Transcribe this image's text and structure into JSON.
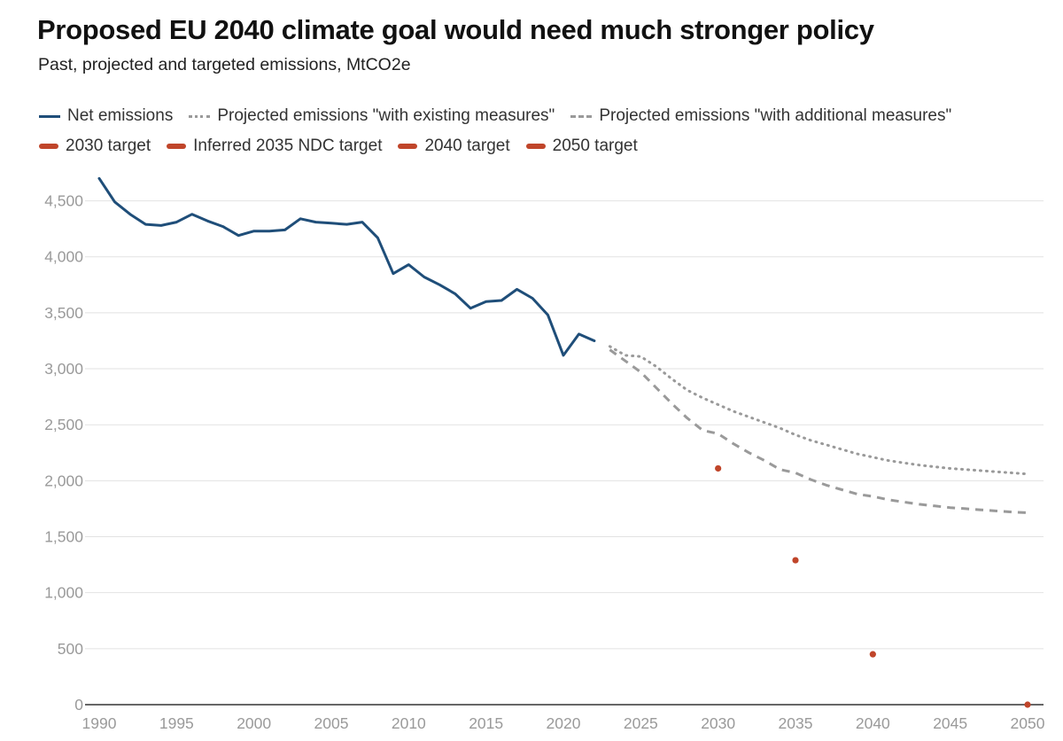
{
  "chart_data": {
    "type": "line",
    "title": "Proposed EU 2040 climate goal would need much stronger policy",
    "subtitle": "Past, projected and targeted emissions, MtCO2e",
    "xlabel": "",
    "ylabel": "",
    "xlim": [
      1990,
      2050
    ],
    "ylim": [
      0,
      4750
    ],
    "x_ticks": [
      1990,
      1995,
      2000,
      2005,
      2010,
      2015,
      2020,
      2025,
      2030,
      2035,
      2040,
      2045,
      2050
    ],
    "y_ticks": [
      0,
      500,
      1000,
      1500,
      2000,
      2500,
      3000,
      3500,
      4000,
      4500
    ],
    "y_tick_labels": [
      "0",
      "500",
      "1,000",
      "1,500",
      "2,000",
      "2,500",
      "3,000",
      "3,500",
      "4,000",
      "4,500"
    ],
    "grid": true,
    "legend_position": "top",
    "series": [
      {
        "name": "Net emissions",
        "style": "solid",
        "color": "#1f4e79",
        "x": [
          1990,
          1991,
          1992,
          1993,
          1994,
          1995,
          1996,
          1997,
          1998,
          1999,
          2000,
          2001,
          2002,
          2003,
          2004,
          2005,
          2006,
          2007,
          2008,
          2009,
          2010,
          2011,
          2012,
          2013,
          2014,
          2015,
          2016,
          2017,
          2018,
          2019,
          2020,
          2021,
          2022
        ],
        "values": [
          4700,
          4490,
          4380,
          4290,
          4280,
          4310,
          4380,
          4320,
          4270,
          4190,
          4230,
          4230,
          4240,
          4340,
          4310,
          4300,
          4290,
          4310,
          4170,
          3850,
          3930,
          3820,
          3750,
          3670,
          3540,
          3600,
          3610,
          3710,
          3630,
          3480,
          3120,
          3310,
          3250
        ]
      },
      {
        "name": "Projected emissions \"with existing measures\"",
        "style": "dotted",
        "color": "#9a9a9a",
        "x": [
          2023,
          2024,
          2025,
          2026,
          2027,
          2028,
          2029,
          2030,
          2031,
          2032,
          2033,
          2034,
          2035,
          2036,
          2037,
          2038,
          2039,
          2040,
          2041,
          2042,
          2043,
          2044,
          2045,
          2046,
          2047,
          2048,
          2049,
          2050
        ],
        "values": [
          3200,
          3120,
          3110,
          3020,
          2910,
          2810,
          2740,
          2680,
          2620,
          2570,
          2520,
          2470,
          2410,
          2360,
          2320,
          2280,
          2240,
          2210,
          2180,
          2160,
          2140,
          2125,
          2110,
          2100,
          2090,
          2080,
          2070,
          2060
        ]
      },
      {
        "name": "Projected emissions \"with additional measures\"",
        "style": "dashed",
        "color": "#9a9a9a",
        "x": [
          2023,
          2024,
          2025,
          2026,
          2027,
          2028,
          2029,
          2030,
          2031,
          2032,
          2033,
          2034,
          2035,
          2036,
          2037,
          2038,
          2039,
          2040,
          2041,
          2042,
          2043,
          2044,
          2045,
          2046,
          2047,
          2048,
          2049,
          2050
        ],
        "values": [
          3170,
          3070,
          2970,
          2830,
          2690,
          2560,
          2450,
          2420,
          2330,
          2250,
          2180,
          2100,
          2070,
          2010,
          1960,
          1920,
          1880,
          1860,
          1830,
          1810,
          1790,
          1775,
          1760,
          1750,
          1740,
          1730,
          1720,
          1715
        ]
      },
      {
        "name": "2030 target",
        "style": "point",
        "color": "#c0452a",
        "x": [
          2030
        ],
        "values": [
          2110
        ]
      },
      {
        "name": "Inferred 2035 NDC target",
        "style": "point",
        "color": "#c0452a",
        "x": [
          2035
        ],
        "values": [
          1290
        ]
      },
      {
        "name": "2040 target",
        "style": "point",
        "color": "#c0452a",
        "x": [
          2040
        ],
        "values": [
          450
        ]
      },
      {
        "name": "2050 target",
        "style": "point",
        "color": "#c0452a",
        "x": [
          2050
        ],
        "values": [
          0
        ]
      }
    ]
  }
}
